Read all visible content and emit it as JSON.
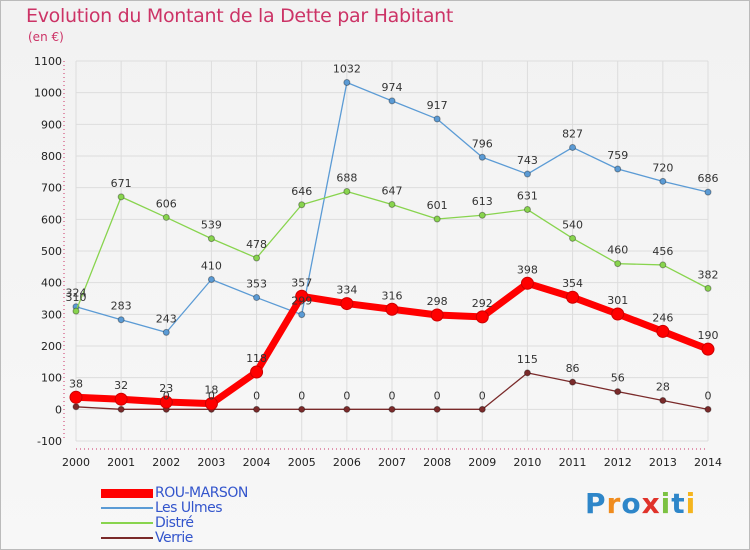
{
  "title": "Evolution du Montant de la Dette par Habitant",
  "subtitle": "(en €)",
  "brand": {
    "letters": [
      "P",
      "r",
      "o",
      "x",
      "i",
      "t",
      "i"
    ],
    "colors": [
      "#2e86c9",
      "#f08c1e",
      "#2e86c9",
      "#e0322a",
      "#7cc242",
      "#2e86c9",
      "#f5b51e"
    ]
  },
  "chart_data": {
    "type": "line",
    "x": [
      "2000",
      "2001",
      "2002",
      "2003",
      "2004",
      "2005",
      "2006",
      "2007",
      "2008",
      "2009",
      "2010",
      "2011",
      "2012",
      "2013",
      "2014"
    ],
    "ylim": [
      -100,
      1100
    ],
    "yticks": [
      "-100",
      "0",
      "100",
      "200",
      "300",
      "400",
      "500",
      "600",
      "700",
      "800",
      "900",
      "1000",
      "1100"
    ],
    "grid": true,
    "legend_position": "bottom-left",
    "series": [
      {
        "name": "ROU-MARSON",
        "color": "#ff0000",
        "values": [
          38,
          32,
          23,
          18,
          118,
          357,
          334,
          316,
          298,
          292,
          398,
          354,
          301,
          246,
          190
        ],
        "labels": [
          "38",
          "32",
          "23",
          "18",
          "118",
          "357",
          "334",
          "316",
          "298",
          "292",
          "398",
          "354",
          "301",
          "246",
          "190"
        ]
      },
      {
        "name": "Les Ulmes",
        "color": "#5b9bd5",
        "values": [
          324,
          283,
          243,
          410,
          353,
          299,
          1032,
          974,
          917,
          796,
          743,
          827,
          759,
          720,
          686
        ],
        "labels": [
          "324",
          "283",
          "243",
          "410",
          "353",
          "299",
          "1032",
          "974",
          "917",
          "796",
          "743",
          "827",
          "759",
          "720",
          "686"
        ]
      },
      {
        "name": "Distré",
        "color": "#88d44e",
        "values": [
          310,
          671,
          606,
          539,
          478,
          646,
          688,
          647,
          601,
          613,
          631,
          540,
          460,
          456,
          382
        ],
        "labels": [
          "310",
          "671",
          "606",
          "539",
          "478",
          "646",
          "688",
          "647",
          "601",
          "613",
          "631",
          "540",
          "460",
          "456",
          "382"
        ]
      },
      {
        "name": "Verrie",
        "color": "#7a2a2a",
        "values": [
          8,
          0,
          0,
          0,
          0,
          0,
          0,
          0,
          0,
          0,
          115,
          86,
          56,
          28,
          0
        ],
        "labels": [
          "",
          "",
          "0",
          "0",
          "0",
          "0",
          "0",
          "0",
          "0",
          "0",
          "115",
          "86",
          "56",
          "28",
          "0"
        ]
      }
    ]
  }
}
